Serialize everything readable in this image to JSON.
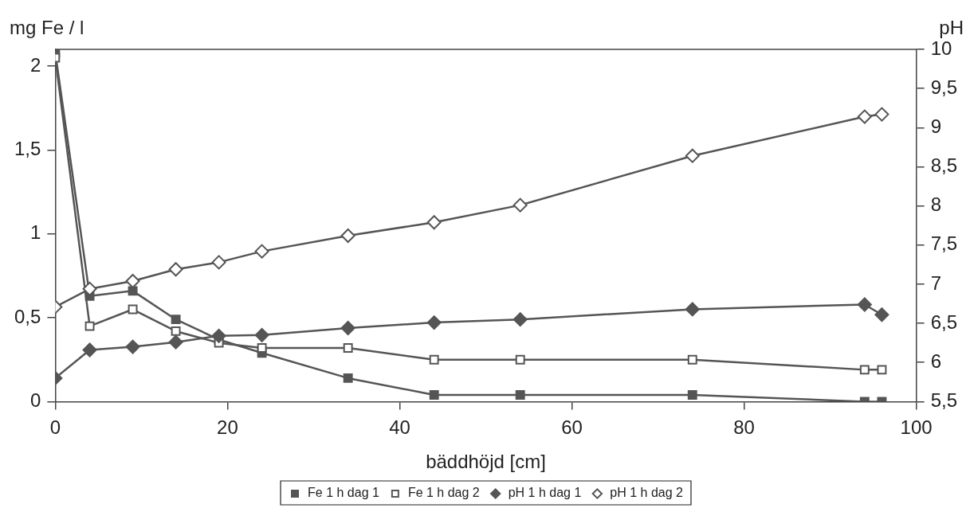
{
  "chart_data": {
    "type": "line",
    "xlabel": "bäddhöjd [cm]",
    "ylabel": "mg Fe / l",
    "y2label": "pH",
    "x": [
      0,
      4,
      9,
      14,
      19,
      24,
      34,
      44,
      54,
      74,
      94,
      96
    ],
    "xlim": [
      0,
      100
    ],
    "xticks": [
      0,
      20,
      40,
      60,
      80,
      100
    ],
    "ylim": [
      0,
      2.1
    ],
    "yticks": [
      0,
      {
        "value": 0.5,
        "label": "0,5"
      },
      1,
      {
        "value": 1.5,
        "label": "1,5"
      },
      2
    ],
    "y2lim": [
      5.5,
      10
    ],
    "y2ticks": [
      {
        "value": 5.5,
        "label": "5,5"
      },
      6,
      {
        "value": 6.5,
        "label": "6,5"
      },
      7,
      {
        "value": 7.5,
        "label": "7,5"
      },
      8,
      {
        "value": 8.5,
        "label": "8,5"
      },
      9,
      {
        "value": 9.5,
        "label": "9,5"
      },
      10
    ],
    "grid": false,
    "legend": "bottom",
    "line_style": "solid",
    "series": [
      {
        "name": "Fe 1 h dag 1",
        "color": "#555555",
        "marker": "square",
        "values": [
          2.08,
          0.63,
          0.66,
          0.49,
          0.37,
          0.29,
          0.14,
          0.04,
          0.04,
          0.04,
          0,
          0
        ]
      },
      {
        "name": "Fe 1 h dag 2",
        "color": "#ffffff",
        "marker": "square",
        "values": [
          2.05,
          0.45,
          0.55,
          0.42,
          0.35,
          0.32,
          0.32,
          0.25,
          0.25,
          0.25,
          0.19,
          0.19
        ]
      },
      {
        "name": "pH 1 h dag 1",
        "color": "#555555",
        "marker": "diamond",
        "axis": "y2",
        "values": [
          5.8,
          6.16,
          6.2,
          6.26,
          6.34,
          6.35,
          6.44,
          6.51,
          6.55,
          6.68,
          6.74,
          6.61
        ]
      },
      {
        "name": "pH 1 h dag 2",
        "color": "#ffffff",
        "marker": "diamond",
        "axis": "y2",
        "values": [
          6.71,
          6.94,
          7.04,
          7.19,
          7.28,
          7.42,
          7.62,
          7.79,
          8.01,
          8.64,
          9.14,
          9.17
        ]
      }
    ]
  }
}
